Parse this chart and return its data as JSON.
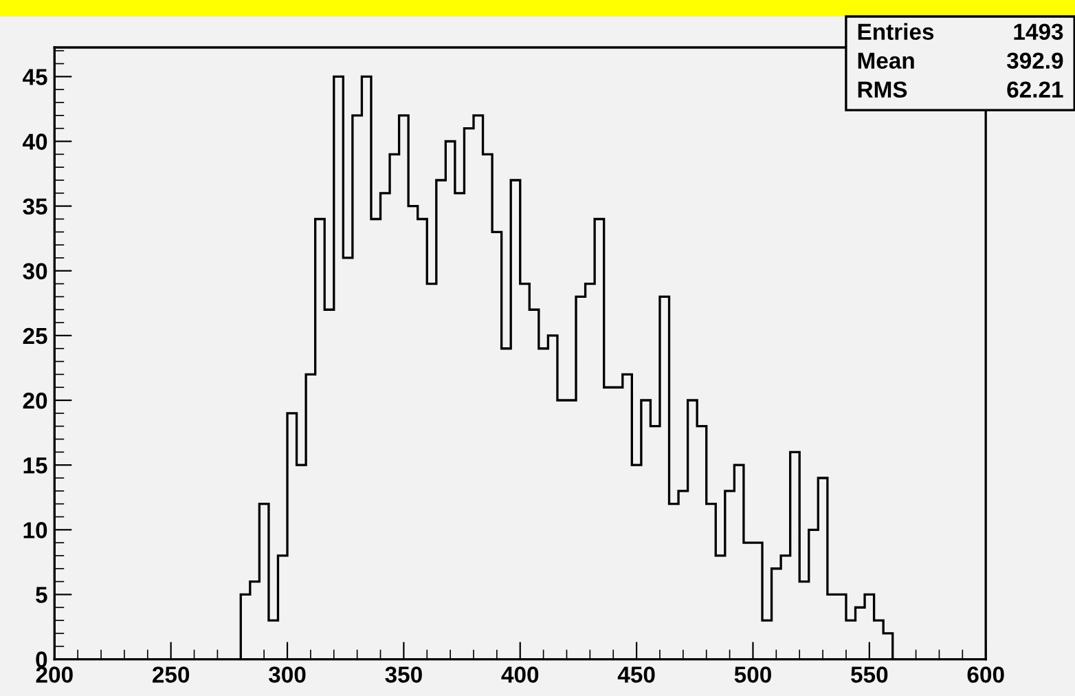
{
  "chart_data": {
    "type": "histogram",
    "bins": [
      280,
      284,
      288,
      292,
      296,
      300,
      304,
      308,
      312,
      316,
      320,
      324,
      328,
      332,
      336,
      340,
      344,
      348,
      352,
      356,
      360,
      364,
      368,
      372,
      376,
      380,
      384,
      388,
      392,
      396,
      400,
      404,
      408,
      412,
      416,
      420,
      424,
      428,
      432,
      436,
      440,
      444,
      448,
      452,
      456,
      460,
      464,
      468,
      472,
      476,
      480,
      484,
      488,
      492,
      496,
      500,
      504,
      508,
      512,
      516,
      520,
      524,
      528,
      532,
      536,
      540,
      544,
      548,
      552,
      556,
      560
    ],
    "values": [
      5,
      6,
      12,
      3,
      8,
      19,
      15,
      22,
      34,
      27,
      45,
      31,
      42,
      45,
      34,
      36,
      39,
      42,
      35,
      34,
      29,
      37,
      40,
      36,
      41,
      42,
      39,
      33,
      24,
      37,
      29,
      27,
      24,
      25,
      20,
      20,
      28,
      29,
      34,
      21,
      21,
      22,
      15,
      20,
      18,
      28,
      12,
      13,
      20,
      18,
      12,
      8,
      13,
      15,
      9,
      9,
      3,
      7,
      8,
      16,
      6,
      10,
      14,
      5,
      5,
      3,
      4,
      5,
      3,
      2
    ],
    "color": "#000000",
    "xlim": [
      200,
      600
    ],
    "xticks": [
      200,
      250,
      300,
      350,
      400,
      450,
      500,
      550,
      600
    ],
    "ylim": [
      0,
      47.25
    ],
    "yticks": [
      0,
      5,
      10,
      15,
      20,
      25,
      30,
      35,
      40,
      45
    ],
    "grid": false,
    "annotations": [
      "Entries",
      "1493",
      "Mean",
      "392.9",
      "RMS",
      "62.21"
    ]
  }
}
